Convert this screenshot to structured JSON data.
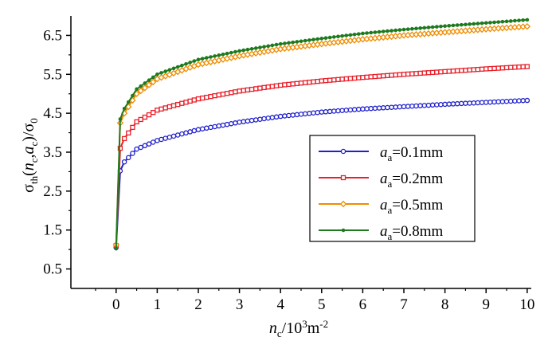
{
  "chart_data": {
    "type": "line",
    "title": "",
    "xlabel": {
      "var": "n",
      "sub": "c",
      "rest": "/10",
      "sup": "3",
      "unit": "m",
      "unit_sup": "-2"
    },
    "ylabel": {
      "sigma": "σ",
      "sigma_sub": "th",
      "open": "(",
      "n": "n",
      "n_sub": "c",
      "comma": ",",
      "a": "a",
      "a_sub": "c",
      "close": ")/",
      "sigma0": "σ",
      "sigma0_sub": "0"
    },
    "xlim": [
      -1.1,
      10.1
    ],
    "ylim": [
      0,
      7.0
    ],
    "xticks": [
      "0",
      "1",
      "2",
      "3",
      "4",
      "5",
      "6",
      "7",
      "8",
      "9",
      "10"
    ],
    "yticks": [
      "0.5",
      "1.5",
      "2.5",
      "3.5",
      "4.5",
      "5.5",
      "6.5"
    ],
    "grid": false,
    "legend_position": "center-right",
    "series": [
      {
        "label_var": "a",
        "label_sub": "a",
        "label_rest": "=0.1mm",
        "color": "#1f1fcc",
        "marker": "circle",
        "x": [
          0,
          0.1,
          0.2,
          0.5,
          1,
          2,
          3,
          4,
          5,
          6,
          7,
          8,
          9,
          10
        ],
        "y": [
          1.05,
          3.02,
          3.25,
          3.58,
          3.8,
          4.08,
          4.27,
          4.42,
          4.53,
          4.61,
          4.67,
          4.73,
          4.78,
          4.83
        ]
      },
      {
        "label_var": "a",
        "label_sub": "a",
        "label_rest": "=0.2mm",
        "color": "#e8202a",
        "marker": "square",
        "x": [
          0,
          0.1,
          0.2,
          0.5,
          1,
          2,
          3,
          4,
          5,
          6,
          7,
          8,
          9,
          10
        ],
        "y": [
          1.1,
          3.6,
          3.85,
          4.28,
          4.58,
          4.87,
          5.07,
          5.22,
          5.33,
          5.42,
          5.5,
          5.57,
          5.64,
          5.7
        ]
      },
      {
        "label_var": "a",
        "label_sub": "a",
        "label_rest": "=0.5mm",
        "color": "#f08c00",
        "marker": "diamond",
        "x": [
          0,
          0.1,
          0.2,
          0.5,
          1,
          2,
          3,
          4,
          5,
          6,
          7,
          8,
          9,
          10
        ],
        "y": [
          1.12,
          4.25,
          4.5,
          5.0,
          5.38,
          5.75,
          5.97,
          6.15,
          6.28,
          6.4,
          6.5,
          6.58,
          6.66,
          6.73
        ]
      },
      {
        "label_var": "a",
        "label_sub": "a",
        "label_rest": "=0.8mm",
        "color": "#1f7a1f",
        "marker": "dot",
        "x": [
          0,
          0.1,
          0.2,
          0.5,
          1,
          2,
          3,
          4,
          5,
          6,
          7,
          8,
          9,
          10
        ],
        "y": [
          1.02,
          4.35,
          4.62,
          5.12,
          5.5,
          5.88,
          6.1,
          6.28,
          6.42,
          6.55,
          6.65,
          6.74,
          6.82,
          6.9
        ]
      }
    ]
  }
}
